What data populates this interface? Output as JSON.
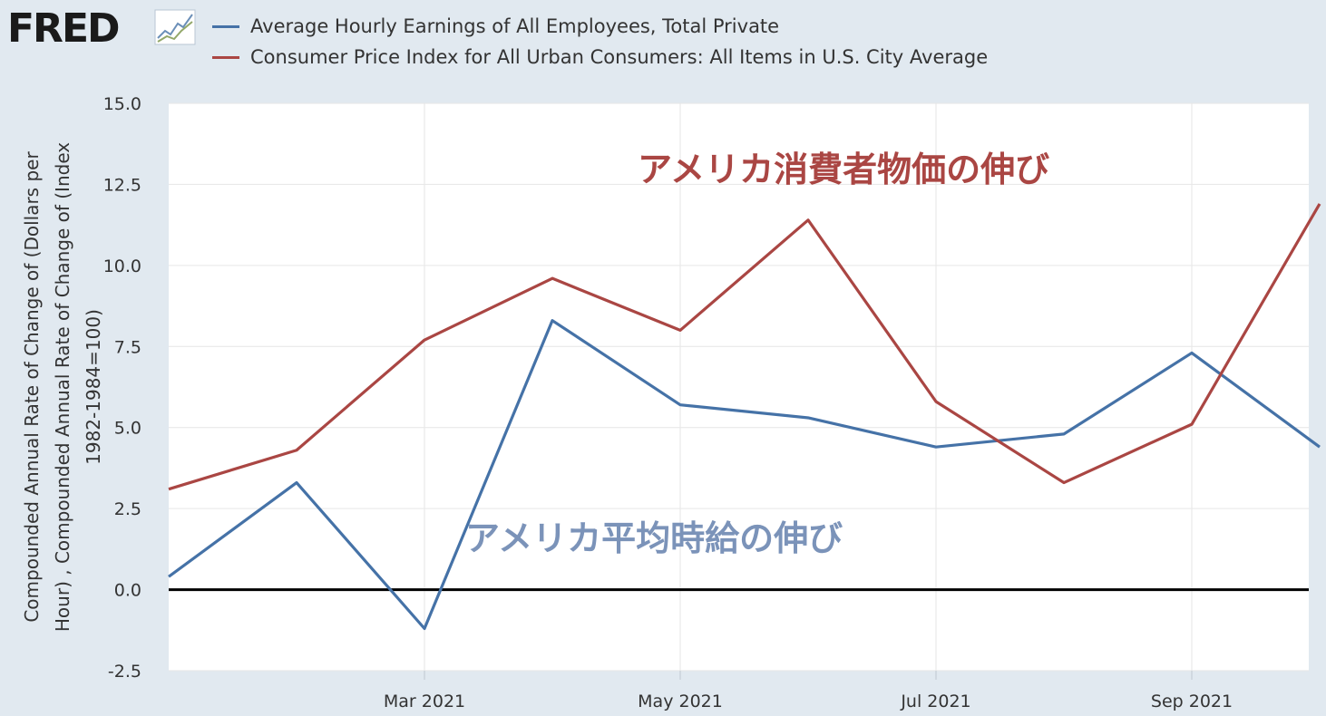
{
  "header": {
    "logo_text": "FRED",
    "logo_icon": "line-graph-icon"
  },
  "legend": [
    {
      "label": "Average Hourly Earnings of All Employees, Total Private",
      "color": "#4572a7"
    },
    {
      "label": "Consumer Price Index for All Urban Consumers: All Items in U.S. City Average",
      "color": "#aa4643"
    }
  ],
  "chart_data": {
    "type": "line",
    "x": [
      "2021-01",
      "2021-02",
      "2021-03",
      "2021-04",
      "2021-05",
      "2021-06",
      "2021-07",
      "2021-08",
      "2021-09",
      "2021-10"
    ],
    "x_ticks": [
      {
        "x": "2021-03",
        "label": "Mar 2021"
      },
      {
        "x": "2021-05",
        "label": "May 2021"
      },
      {
        "x": "2021-07",
        "label": "Jul 2021"
      },
      {
        "x": "2021-09",
        "label": "Sep 2021"
      }
    ],
    "ylim": [
      -2.5,
      15.0
    ],
    "y_ticks": [
      "15.0",
      "12.5",
      "10.0",
      "7.5",
      "5.0",
      "2.5",
      "0.0",
      "-2.5"
    ],
    "ylabel": [
      "Compounded Annual Rate of Change of (Dollars per",
      "Hour) , Compounded Annual Rate of Change of (Index",
      "1982-1984=100)"
    ],
    "grid": true,
    "zero_line": true,
    "series": [
      {
        "name": "Average Hourly Earnings of All Employees, Total Private",
        "color": "#4572a7",
        "values": [
          0.4,
          3.3,
          -1.2,
          8.3,
          5.7,
          5.3,
          4.4,
          4.8,
          7.3,
          4.4
        ]
      },
      {
        "name": "Consumer Price Index for All Urban Consumers: All Items in U.S. City Average",
        "color": "#aa4643",
        "values": [
          3.1,
          4.3,
          7.7,
          9.6,
          8.0,
          11.4,
          5.8,
          3.3,
          5.1,
          11.9
        ]
      }
    ],
    "annotations": [
      {
        "text": "アメリカ消費者物価の伸び",
        "color": "#aa4643"
      },
      {
        "text": "アメリカ平均時給の伸び",
        "color": "#7b93b9"
      }
    ]
  }
}
